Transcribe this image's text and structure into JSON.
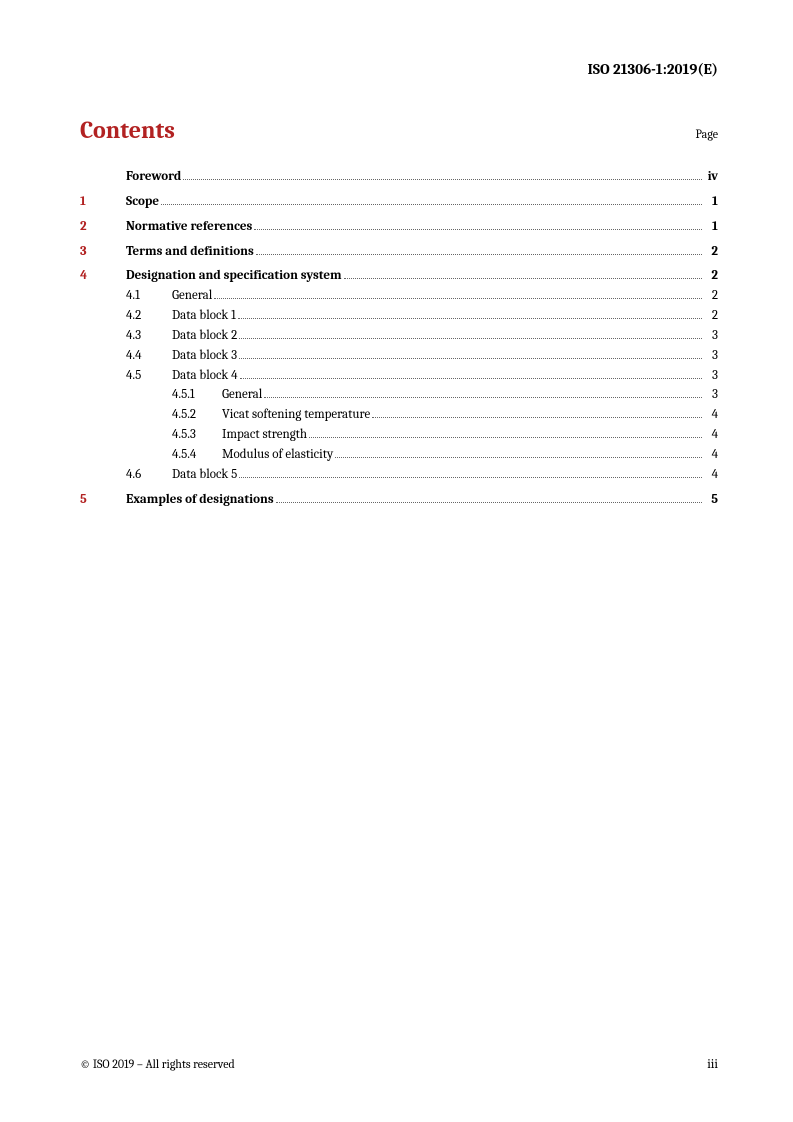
{
  "document_id": "ISO 21306-1:2019(E)",
  "contents_title": "Contents",
  "page_label": "Page",
  "colors": {
    "accent": "#b22222",
    "text": "#000000",
    "background": "#ffffff",
    "leader": "#666666"
  },
  "typography": {
    "body_font": "Cambria, Georgia, serif",
    "title_size_pt": 18,
    "body_size_pt": 10,
    "header_size_pt": 11
  },
  "toc": [
    {
      "level": 1,
      "number": "",
      "title": "Foreword",
      "page": "iv",
      "bold": true,
      "spaced": false
    },
    {
      "level": 1,
      "number": "1",
      "title": "Scope",
      "page": "1",
      "bold": true,
      "spaced": true
    },
    {
      "level": 1,
      "number": "2",
      "title": "Normative references",
      "page": "1",
      "bold": true,
      "spaced": true
    },
    {
      "level": 1,
      "number": "3",
      "title": "Terms and definitions",
      "page": "2",
      "bold": true,
      "spaced": true
    },
    {
      "level": 1,
      "number": "4",
      "title": "Designation and specification system",
      "page": "2",
      "bold": true,
      "spaced": true
    },
    {
      "level": 2,
      "number": "4.1",
      "title": "General",
      "page": "2",
      "bold": false,
      "spaced": false
    },
    {
      "level": 2,
      "number": "4.2",
      "title": "Data block 1",
      "page": "2",
      "bold": false,
      "spaced": false
    },
    {
      "level": 2,
      "number": "4.3",
      "title": "Data block 2",
      "page": "3",
      "bold": false,
      "spaced": false
    },
    {
      "level": 2,
      "number": "4.4",
      "title": "Data block 3",
      "page": "3",
      "bold": false,
      "spaced": false
    },
    {
      "level": 2,
      "number": "4.5",
      "title": "Data block 4",
      "page": "3",
      "bold": false,
      "spaced": false
    },
    {
      "level": 3,
      "number": "4.5.1",
      "title": "General",
      "page": "3",
      "bold": false,
      "spaced": false
    },
    {
      "level": 3,
      "number": "4.5.2",
      "title": "Vicat softening temperature",
      "page": "4",
      "bold": false,
      "spaced": false
    },
    {
      "level": 3,
      "number": "4.5.3",
      "title": "Impact strength",
      "page": "4",
      "bold": false,
      "spaced": false
    },
    {
      "level": 3,
      "number": "4.5.4",
      "title": "Modulus of elasticity",
      "page": "4",
      "bold": false,
      "spaced": false
    },
    {
      "level": 2,
      "number": "4.6",
      "title": "Data block 5",
      "page": "4",
      "bold": false,
      "spaced": false
    },
    {
      "level": 1,
      "number": "5",
      "title": "Examples of designations",
      "page": "5",
      "bold": true,
      "spaced": true
    }
  ],
  "footer": {
    "copyright": "© ISO 2019 – All rights reserved",
    "page_number": "iii"
  }
}
